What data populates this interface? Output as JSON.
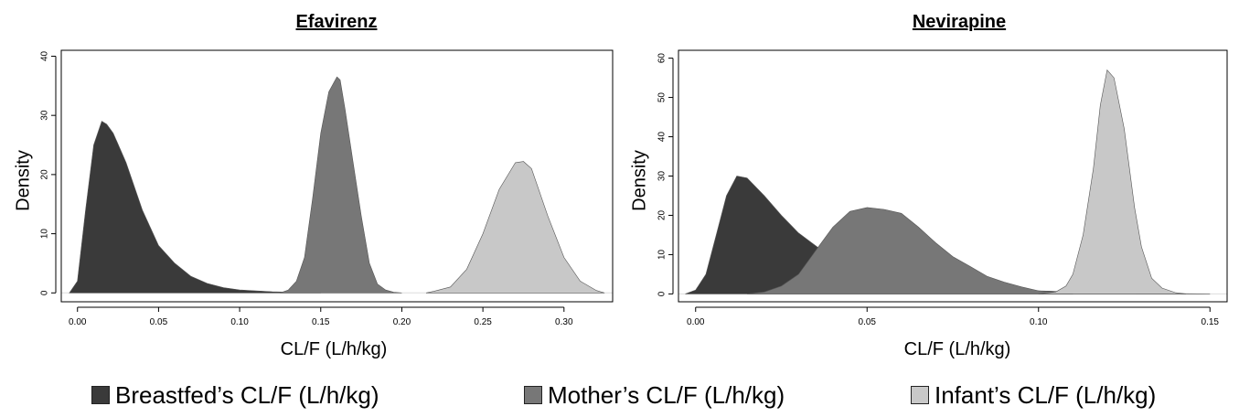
{
  "chart_data": [
    {
      "type": "area",
      "title": "Efavirenz",
      "xlabel": "CL/F (L/h/kg)",
      "ylabel": "Density",
      "xlim": [
        -0.01,
        0.33
      ],
      "ylim": [
        -1.5,
        41
      ],
      "x_ticks": [
        "0.00",
        "0.05",
        "0.10",
        "0.15",
        "0.20",
        "0.25",
        "0.30"
      ],
      "y_ticks": [
        "0",
        "10",
        "20",
        "30",
        "40"
      ],
      "grid": false,
      "series": [
        {
          "name": "Breastfed’s CL/F (L/h/kg)",
          "color": "#3a3a3a",
          "x": [
            -0.005,
            0.0,
            0.005,
            0.01,
            0.015,
            0.018,
            0.022,
            0.03,
            0.04,
            0.05,
            0.06,
            0.07,
            0.08,
            0.09,
            0.1,
            0.12,
            0.14,
            0.15
          ],
          "y": [
            0,
            2,
            14,
            25,
            29,
            28.5,
            27,
            22,
            14,
            8,
            5,
            2.8,
            1.6,
            0.9,
            0.5,
            0.2,
            0.05,
            0
          ]
        },
        {
          "name": "Mother’s CL/F (L/h/kg)",
          "color": "#777777",
          "x": [
            0.125,
            0.13,
            0.135,
            0.14,
            0.145,
            0.15,
            0.155,
            0.16,
            0.162,
            0.165,
            0.17,
            0.175,
            0.18,
            0.185,
            0.19,
            0.195,
            0.2
          ],
          "y": [
            0,
            0.5,
            2,
            6,
            16,
            27,
            34,
            36.5,
            36,
            31,
            22,
            13,
            5,
            1.5,
            0.5,
            0.1,
            0
          ]
        },
        {
          "name": "Infant’s CL/F (L/h/kg)",
          "color": "#c8c8c8",
          "x": [
            0.215,
            0.22,
            0.23,
            0.24,
            0.25,
            0.26,
            0.27,
            0.275,
            0.28,
            0.29,
            0.3,
            0.31,
            0.32,
            0.325
          ],
          "y": [
            0,
            0.3,
            1,
            4,
            10,
            17.5,
            22,
            22.2,
            21,
            13,
            6,
            2,
            0.4,
            0
          ]
        }
      ]
    },
    {
      "type": "area",
      "title": "Nevirapine",
      "xlabel": "CL/F (L/h/kg)",
      "ylabel": "Density",
      "xlim": [
        -0.005,
        0.155
      ],
      "ylim": [
        -2,
        62
      ],
      "x_ticks": [
        "0.00",
        "0.05",
        "0.10",
        "0.15"
      ],
      "y_ticks": [
        "0",
        "10",
        "20",
        "30",
        "40",
        "50",
        "60"
      ],
      "grid": false,
      "series": [
        {
          "name": "Breastfed’s CL/F (L/h/kg)",
          "color": "#3a3a3a",
          "x": [
            -0.003,
            0.0,
            0.003,
            0.006,
            0.009,
            0.012,
            0.015,
            0.02,
            0.025,
            0.03,
            0.04,
            0.05,
            0.06,
            0.07,
            0.08,
            0.09,
            0.1,
            0.11,
            0.12,
            0.13,
            0.15
          ],
          "y": [
            0,
            1,
            5,
            15,
            25,
            30,
            29.5,
            25,
            20,
            15.5,
            9,
            5.5,
            3.8,
            2.6,
            1.8,
            1.2,
            0.8,
            0.5,
            0.3,
            0.15,
            0
          ]
        },
        {
          "name": "Mother’s CL/F (L/h/kg)",
          "color": "#777777",
          "x": [
            0.015,
            0.02,
            0.025,
            0.03,
            0.035,
            0.04,
            0.045,
            0.05,
            0.055,
            0.06,
            0.065,
            0.07,
            0.075,
            0.08,
            0.085,
            0.09,
            0.095,
            0.1,
            0.105,
            0.11
          ],
          "y": [
            0,
            0.5,
            2,
            5,
            11,
            17,
            21,
            22,
            21.5,
            20.5,
            17,
            13,
            9.5,
            7,
            4.5,
            3,
            1.8,
            0.8,
            0.3,
            0
          ]
        },
        {
          "name": "Infant’s CL/F (L/h/kg)",
          "color": "#c8c8c8",
          "x": [
            0.1,
            0.105,
            0.108,
            0.11,
            0.113,
            0.116,
            0.118,
            0.12,
            0.122,
            0.125,
            0.128,
            0.13,
            0.133,
            0.136,
            0.14,
            0.143
          ],
          "y": [
            0,
            0.5,
            2,
            5,
            15,
            32,
            48,
            57,
            55,
            42,
            22,
            12,
            4,
            1.5,
            0.3,
            0
          ]
        }
      ]
    }
  ],
  "legend": {
    "items": [
      {
        "label": "Breastfed’s CL/F (L/h/kg)",
        "color": "#3a3a3a"
      },
      {
        "label": "Mother’s CL/F (L/h/kg)",
        "color": "#777777"
      },
      {
        "label": "Infant’s CL/F (L/h/kg)",
        "color": "#c8c8c8"
      }
    ]
  }
}
